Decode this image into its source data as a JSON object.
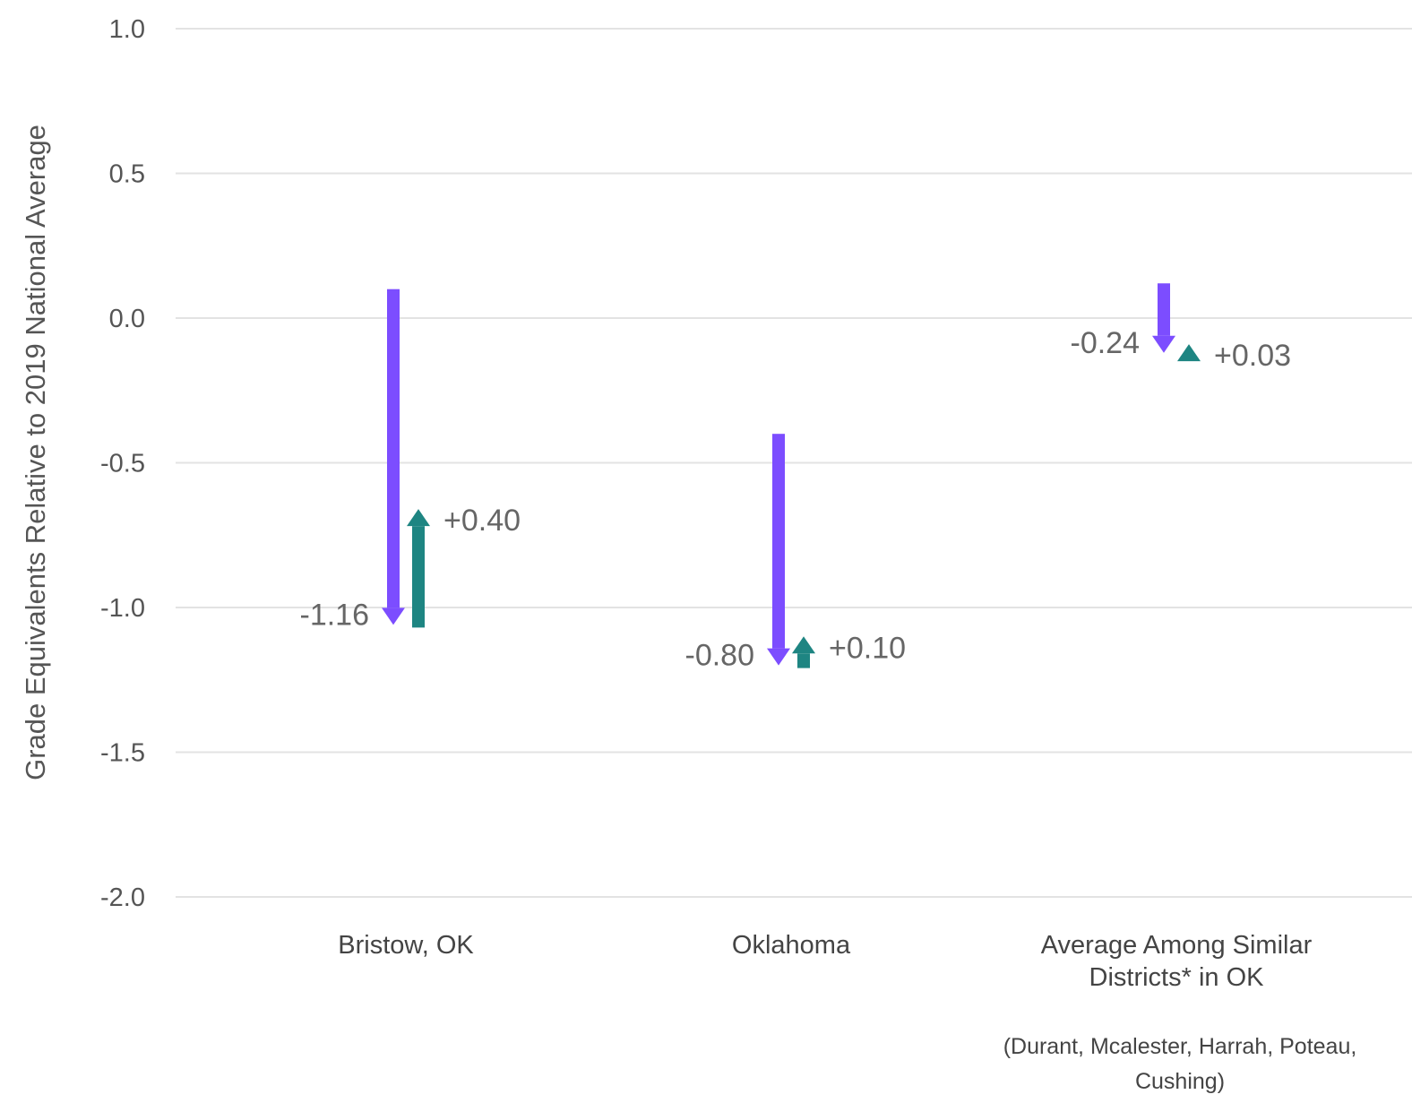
{
  "chart_data": {
    "type": "bar",
    "subtype": "arrow-change",
    "ylabel": "Grade Equivalents Relative to 2019 National Average",
    "ylim": [
      -2.0,
      1.0
    ],
    "yticks": [
      1.0,
      0.5,
      0.0,
      -0.5,
      -1.0,
      -1.5,
      -2.0
    ],
    "ytick_labels": [
      "1.0",
      "0.5",
      "0.0",
      "-0.5",
      "-1.0",
      "-1.5",
      "-2.0"
    ],
    "grid": true,
    "colors": {
      "decline": "#7c4dff",
      "recovery": "#1e8582"
    },
    "categories": [
      {
        "label_lines": [
          "Bristow, OK"
        ],
        "note_lines": [],
        "start": 0.1,
        "decline": -1.16,
        "decline_label": "-1.16",
        "recovery": 0.4,
        "recovery_label": "+0.40"
      },
      {
        "label_lines": [
          "Oklahoma"
        ],
        "note_lines": [],
        "start": -0.4,
        "decline": -0.8,
        "decline_label": "-0.80",
        "recovery": 0.1,
        "recovery_label": "+0.10"
      },
      {
        "label_lines": [
          "Average Among Similar",
          "Districts* in OK"
        ],
        "note_lines": [
          "(Durant, Mcalester, Harrah, Poteau,",
          "Cushing)"
        ],
        "start": 0.12,
        "decline": -0.24,
        "decline_label": "-0.24",
        "recovery": 0.03,
        "recovery_label": "+0.03"
      }
    ]
  }
}
